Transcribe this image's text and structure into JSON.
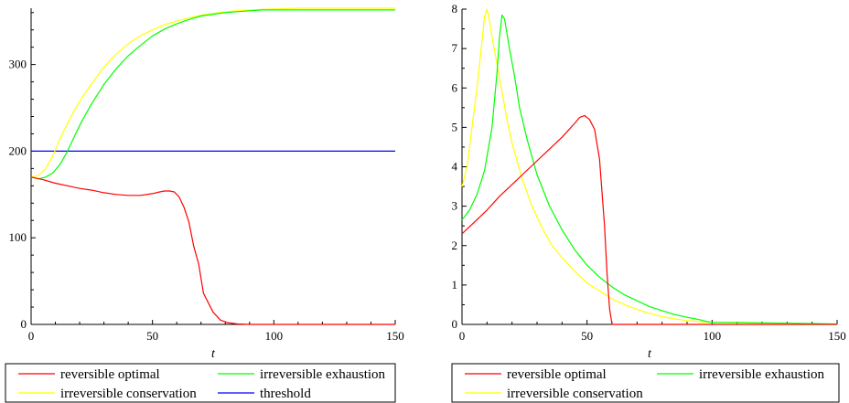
{
  "chart_data": [
    {
      "type": "line",
      "xlabel": "t",
      "xlim": [
        0,
        150
      ],
      "ylim": [
        0,
        365
      ],
      "x_ticks": [
        "0",
        "50",
        "100",
        "150"
      ],
      "y_ticks": [
        "0",
        "100",
        "200",
        "300"
      ],
      "legend_position": "bottom",
      "series": [
        {
          "name": "reversible optimal",
          "color": "#ff0000",
          "x": [
            0,
            5,
            10,
            15,
            20,
            25,
            30,
            35,
            40,
            45,
            50,
            53,
            55,
            57,
            59,
            61,
            63,
            65,
            67,
            69,
            71,
            73,
            75,
            78,
            81,
            85,
            90,
            100,
            120,
            150
          ],
          "y": [
            170,
            167,
            163,
            160,
            157,
            155,
            152,
            150,
            149,
            149,
            151,
            153,
            154,
            154,
            153,
            147,
            135,
            118,
            90,
            70,
            36,
            25,
            14,
            5,
            2,
            0.5,
            0,
            0,
            0,
            0
          ]
        },
        {
          "name": "irreversible exhaustion",
          "color": "#00ff00",
          "x": [
            0,
            3,
            6,
            9,
            12,
            15,
            18,
            21,
            25,
            30,
            35,
            40,
            45,
            50,
            55,
            60,
            65,
            70,
            75,
            80,
            85,
            90,
            95,
            100,
            110,
            120,
            130,
            140,
            150
          ],
          "y": [
            170,
            168,
            170,
            175,
            185,
            200,
            218,
            235,
            255,
            277,
            295,
            310,
            322,
            333,
            341,
            347,
            352,
            356,
            358,
            360,
            361,
            362,
            363,
            363,
            363,
            363,
            363,
            363,
            363
          ]
        },
        {
          "name": "irreversible conservation",
          "color": "#ffff00",
          "x": [
            0,
            3,
            6,
            9,
            12,
            15,
            18,
            21,
            25,
            30,
            35,
            40,
            45,
            50,
            55,
            60,
            65,
            70,
            75,
            80,
            85,
            90,
            100,
            110,
            120,
            130,
            140,
            150
          ],
          "y": [
            170,
            172,
            180,
            195,
            215,
            232,
            248,
            262,
            278,
            297,
            312,
            324,
            333,
            340,
            346,
            350,
            354,
            357,
            359,
            361,
            362,
            363,
            364,
            365,
            365,
            365,
            365,
            365
          ]
        },
        {
          "name": "threshold",
          "color": "#0000ff",
          "x": [
            0,
            150
          ],
          "y": [
            200,
            200
          ]
        }
      ]
    },
    {
      "type": "line",
      "xlabel": "t",
      "xlim": [
        0,
        150
      ],
      "ylim": [
        0,
        8
      ],
      "x_ticks": [
        "0",
        "50",
        "100",
        "150"
      ],
      "y_ticks": [
        "0",
        "1",
        "2",
        "3",
        "4",
        "5",
        "6",
        "7",
        "8"
      ],
      "legend_position": "bottom",
      "series": [
        {
          "name": "reversible optimal",
          "color": "#ff0000",
          "x": [
            0,
            5,
            10,
            15,
            20,
            25,
            30,
            35,
            40,
            45,
            47,
            49,
            51,
            53,
            55,
            57,
            58,
            59,
            60,
            61,
            70,
            100,
            150
          ],
          "y": [
            2.3,
            2.6,
            2.9,
            3.25,
            3.55,
            3.85,
            4.15,
            4.45,
            4.75,
            5.1,
            5.25,
            5.3,
            5.2,
            4.95,
            4.2,
            2.5,
            1.3,
            0.4,
            0,
            0,
            0,
            0,
            0
          ]
        },
        {
          "name": "irreversible exhaustion",
          "color": "#00ff00",
          "x": [
            0,
            3,
            6,
            9,
            12,
            14,
            15,
            16,
            17,
            19,
            21,
            23,
            26,
            30,
            35,
            40,
            45,
            50,
            55,
            60,
            65,
            70,
            75,
            80,
            85,
            90,
            95,
            98,
            100,
            110,
            120,
            130,
            140,
            150
          ],
          "y": [
            2.65,
            2.9,
            3.3,
            3.9,
            5.0,
            6.4,
            7.3,
            7.85,
            7.75,
            7.0,
            6.3,
            5.5,
            4.7,
            3.8,
            3.0,
            2.4,
            1.9,
            1.5,
            1.2,
            0.95,
            0.75,
            0.6,
            0.45,
            0.35,
            0.25,
            0.18,
            0.12,
            0.07,
            0.05,
            0.05,
            0.04,
            0.03,
            0.02,
            0.01
          ]
        },
        {
          "name": "irreversible conservation",
          "color": "#ffff00",
          "x": [
            0,
            2,
            4,
            6,
            8,
            9,
            10,
            11,
            12,
            14,
            16,
            18,
            20,
            24,
            28,
            32,
            36,
            40,
            45,
            50,
            55,
            60,
            65,
            70,
            75,
            80,
            85,
            90,
            95,
            100,
            110,
            120,
            130,
            140,
            150
          ],
          "y": [
            3.5,
            4.0,
            5.0,
            6.0,
            7.2,
            7.8,
            8.0,
            7.7,
            7.3,
            6.6,
            5.9,
            5.2,
            4.6,
            3.7,
            3.0,
            2.45,
            2.0,
            1.7,
            1.35,
            1.05,
            0.85,
            0.65,
            0.5,
            0.38,
            0.28,
            0.2,
            0.14,
            0.1,
            0.07,
            0.05,
            0.04,
            0.03,
            0.02,
            0.01,
            0.01
          ]
        }
      ]
    }
  ]
}
